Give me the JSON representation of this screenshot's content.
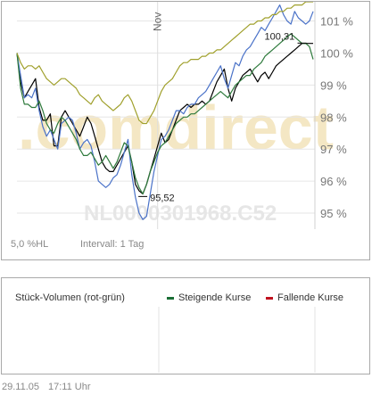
{
  "chart_data": {
    "type": "line",
    "x": [
      0,
      1,
      2,
      3,
      4,
      5,
      6,
      7,
      8,
      9,
      10,
      11,
      12,
      13,
      14,
      15,
      16,
      17,
      18,
      19,
      20,
      21,
      22,
      23,
      24,
      25,
      26,
      27,
      28,
      29,
      30,
      31,
      32,
      33,
      34,
      35,
      36,
      37,
      38,
      39,
      40,
      41,
      42,
      43,
      44,
      45,
      46,
      47,
      48,
      49,
      50,
      51,
      52,
      53,
      54,
      55,
      56,
      57,
      58,
      59,
      60,
      61,
      62,
      63,
      64,
      65,
      66,
      67,
      68,
      69,
      70,
      71,
      72,
      73,
      74,
      75,
      76,
      77,
      78,
      79,
      80
    ],
    "ylim": [
      94.5,
      101.6
    ],
    "y_ticks": [
      "101 %",
      "100 %",
      "99 %",
      "98 %",
      "97 %",
      "96 %",
      "95 %"
    ],
    "y_tick_values": [
      101,
      100,
      99,
      98,
      97,
      96,
      95
    ],
    "x_marker_label": "Nov",
    "x_marker_position": 38,
    "series": [
      {
        "key": "black",
        "color": "#000000",
        "values": [
          100.0,
          99.1,
          98.6,
          98.8,
          99.0,
          99.2,
          98.3,
          97.9,
          97.9,
          98.1,
          97.1,
          97.1,
          98.0,
          98.2,
          98.0,
          97.8,
          97.6,
          97.4,
          97.7,
          98.0,
          97.8,
          97.4,
          97.0,
          96.6,
          96.4,
          96.3,
          96.3,
          96.5,
          96.7,
          96.9,
          97.1,
          96.6,
          95.9,
          95.7,
          95.6,
          95.9,
          96.3,
          96.7,
          97.1,
          97.5,
          97.2,
          97.3,
          97.6,
          97.9,
          98.2,
          98.3,
          98.4,
          98.3,
          98.4,
          98.4,
          98.5,
          98.4,
          98.5,
          98.8,
          99.1,
          99.3,
          99.5,
          98.9,
          98.5,
          98.9,
          99.1,
          99.3,
          99.4,
          99.5,
          99.3,
          99.1,
          99.3,
          99.4,
          99.2,
          99.4,
          99.6,
          99.7,
          99.8,
          99.9,
          100.0,
          100.1,
          100.2,
          100.3,
          100.3,
          100.3,
          100.3
        ]
      },
      {
        "key": "blue",
        "color": "#4a72c8",
        "values": [
          100.0,
          99.3,
          98.6,
          98.7,
          98.6,
          98.9,
          98.2,
          97.7,
          97.4,
          97.6,
          97.3,
          97.0,
          97.8,
          97.9,
          98.0,
          97.9,
          97.5,
          97.0,
          97.2,
          97.3,
          97.1,
          96.6,
          96.0,
          95.9,
          95.8,
          95.9,
          96.1,
          96.2,
          96.5,
          96.9,
          97.3,
          96.2,
          95.5,
          95.0,
          94.8,
          94.9,
          95.6,
          96.3,
          96.8,
          97.3,
          97.4,
          97.6,
          97.9,
          98.2,
          98.2,
          98.1,
          98.3,
          98.4,
          98.4,
          98.6,
          98.7,
          98.8,
          99.0,
          99.2,
          99.4,
          99.6,
          99.2,
          98.9,
          99.3,
          99.7,
          99.6,
          99.9,
          100.1,
          100.2,
          100.4,
          100.6,
          100.8,
          100.7,
          100.9,
          101.1,
          101.3,
          101.5,
          101.2,
          101.0,
          100.9,
          101.3,
          101.1,
          101.0,
          100.9,
          101.0,
          101.3
        ]
      },
      {
        "key": "green",
        "color": "#2e7a3c",
        "values": [
          100.0,
          98.9,
          98.4,
          98.4,
          98.3,
          98.3,
          98.5,
          98.2,
          97.8,
          97.6,
          97.5,
          97.8,
          98.0,
          97.9,
          97.7,
          97.5,
          97.3,
          97.0,
          96.8,
          96.8,
          96.9,
          96.7,
          96.5,
          96.6,
          96.8,
          96.6,
          96.4,
          96.6,
          96.9,
          97.2,
          97.1,
          96.6,
          96.1,
          95.8,
          95.6,
          95.9,
          96.3,
          96.6,
          96.9,
          97.1,
          97.2,
          97.4,
          97.6,
          97.8,
          97.9,
          98.0,
          98.0,
          98.1,
          98.1,
          98.2,
          98.3,
          98.4,
          98.5,
          98.6,
          98.7,
          98.8,
          98.7,
          98.6,
          98.8,
          99.0,
          99.1,
          99.2,
          99.3,
          99.3,
          99.5,
          99.6,
          99.7,
          99.9,
          100.0,
          100.1,
          100.2,
          100.3,
          100.4,
          100.5,
          100.6,
          100.5,
          100.4,
          100.3,
          100.3,
          100.2,
          99.8
        ]
      },
      {
        "key": "olive",
        "color": "#a0a02c",
        "values": [
          100.0,
          99.7,
          99.5,
          99.6,
          99.6,
          99.5,
          99.6,
          99.4,
          99.2,
          99.1,
          99.0,
          99.1,
          99.2,
          99.2,
          99.1,
          99.0,
          98.9,
          98.7,
          98.6,
          98.5,
          98.4,
          98.6,
          98.7,
          98.5,
          98.4,
          98.3,
          98.2,
          98.3,
          98.4,
          98.6,
          98.7,
          98.5,
          98.2,
          97.9,
          97.8,
          97.8,
          98.0,
          98.2,
          98.5,
          98.8,
          99.0,
          99.1,
          99.2,
          99.4,
          99.6,
          99.7,
          99.7,
          99.8,
          99.8,
          99.8,
          99.9,
          99.9,
          100.0,
          100.0,
          100.1,
          100.1,
          100.2,
          100.3,
          100.4,
          100.5,
          100.6,
          100.7,
          100.8,
          100.9,
          100.9,
          101.0,
          101.0,
          101.1,
          101.1,
          101.2,
          101.2,
          101.3,
          101.3,
          101.4,
          101.4,
          101.5,
          101.5,
          101.5,
          101.6,
          101.6,
          101.6
        ]
      }
    ],
    "annotations": [
      {
        "text": "95,52",
        "x": 34,
        "y": 95.52
      },
      {
        "text": "100,31",
        "x": 77,
        "y": 100.31
      }
    ]
  },
  "watermark": {
    "logo_text": ".comdirect",
    "isin_text": "NL0000301968.C52"
  },
  "info": {
    "scale": "5,0 %HL",
    "interval": "Intervall: 1 Tag"
  },
  "volume": {
    "title": "Stück-Volumen (rot-grün)",
    "legend": [
      {
        "label": "Steigende Kurse",
        "color": "#1a6e35"
      },
      {
        "label": "Fallende Kurse",
        "color": "#c0121f"
      }
    ]
  },
  "footer": {
    "date": "29.11.05",
    "time": "17:11 Uhr"
  }
}
